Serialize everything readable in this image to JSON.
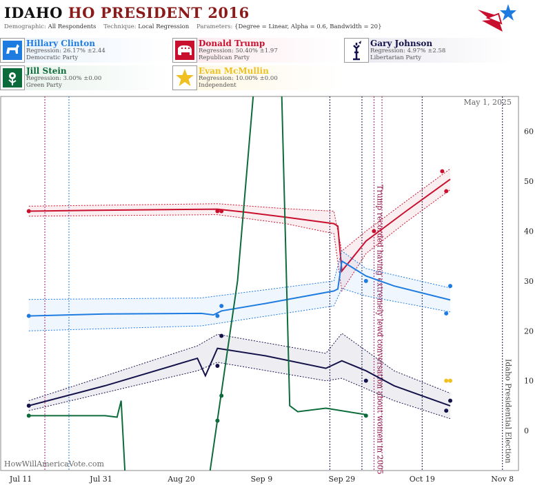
{
  "header": {
    "state": "IDAHO",
    "title_rest": "HO PRESIDENT 2016",
    "demographic_label": "Demographic:",
    "demographic": "All Respondents",
    "technique_label": "Technique:",
    "technique": "Local Regression",
    "parameters_label": "Parameters:",
    "parameters": "{Degree = Linear, Alpha = 0.6, Bandwidth = 20}"
  },
  "candidates": [
    {
      "name": "Hillary Clinton",
      "regression": "Regression: 26.17% ±2.44",
      "party": "Democratic Party",
      "color": "#1e7be0",
      "icon": "donkey-icon"
    },
    {
      "name": "Donald Trump",
      "regression": "Regression: 50.40% ±1.97",
      "party": "Republican Party",
      "color": "#c8102e",
      "icon": "elephant-icon"
    },
    {
      "name": "Gary Johnson",
      "regression": "Regression: 4.97% ±2.58",
      "party": "Libertarian Party",
      "color": "#14124a",
      "icon": "statue-of-liberty-icon"
    },
    {
      "name": "Jill Stein",
      "regression": "Regression: 3.00% ±0.00",
      "party": "Green Party",
      "color": "#0c6b3a",
      "icon": "flower-icon"
    },
    {
      "name": "Evan McMullin",
      "regression": "Regression: 10.00% ±0.00",
      "party": "Independent",
      "color": "#f0c020",
      "icon": "star-icon"
    }
  ],
  "chart_data": {
    "type": "line",
    "date_label": "May 1, 2025",
    "watermark": "HowWillAmericaVote.com",
    "x_ticks": [
      "Jul 11",
      "Jul 31",
      "Aug 20",
      "Sep 9",
      "Sep 29",
      "Oct 19",
      "Nov 8"
    ],
    "x_range": [
      "2016-07-06",
      "2016-11-12"
    ],
    "y_ticks": [
      0,
      10,
      20,
      30,
      40,
      50,
      60
    ],
    "ylim": [
      -8,
      67
    ],
    "grid": false,
    "annotations": [
      {
        "date": "2016-10-07",
        "text": "Trump recorded having extremely lewd conversation about women in 2005",
        "color": "#8b1040"
      },
      {
        "date": "2016-11-08",
        "text": "Idaho Presidential Election",
        "color": "#444444"
      }
    ],
    "vertical_lines": [
      {
        "date": "2016-07-17",
        "color": "#a0186a"
      },
      {
        "date": "2016-07-23",
        "color": "#1e7be0"
      },
      {
        "date": "2016-09-26",
        "color": "#14124a"
      },
      {
        "date": "2016-10-04",
        "color": "#14124a"
      },
      {
        "date": "2016-10-07",
        "color": "#a0186a"
      },
      {
        "date": "2016-10-09",
        "color": "#a0186a"
      },
      {
        "date": "2016-10-19",
        "color": "#14124a"
      },
      {
        "date": "2016-11-08",
        "color": "#14124a"
      }
    ],
    "series": [
      {
        "name": "Donald Trump",
        "color": "#c8102e",
        "line": [
          [
            "2016-07-13",
            44
          ],
          [
            "2016-08-01",
            44.2
          ],
          [
            "2016-08-29",
            44.4
          ],
          [
            "2016-09-05",
            43.8
          ],
          [
            "2016-09-15",
            42.8
          ],
          [
            "2016-09-27",
            41.5
          ],
          [
            "2016-09-28",
            41
          ],
          [
            "2016-09-29",
            32
          ],
          [
            "2016-10-05",
            38
          ],
          [
            "2016-10-15",
            44
          ],
          [
            "2016-10-26",
            50.4
          ]
        ],
        "upper": [
          [
            "2016-07-13",
            45
          ],
          [
            "2016-08-29",
            45.5
          ],
          [
            "2016-09-15",
            44.5
          ],
          [
            "2016-09-27",
            44
          ],
          [
            "2016-09-29",
            36
          ],
          [
            "2016-10-05",
            40
          ],
          [
            "2016-10-15",
            46
          ],
          [
            "2016-10-26",
            52.5
          ]
        ],
        "lower": [
          [
            "2016-07-13",
            43
          ],
          [
            "2016-08-29",
            43.3
          ],
          [
            "2016-09-15",
            41.5
          ],
          [
            "2016-09-27",
            39.5
          ],
          [
            "2016-09-29",
            28
          ],
          [
            "2016-10-05",
            35.5
          ],
          [
            "2016-10-15",
            41.8
          ],
          [
            "2016-10-26",
            48.3
          ]
        ],
        "points": [
          [
            "2016-07-13",
            44
          ],
          [
            "2016-08-29",
            44
          ],
          [
            "2016-08-30",
            44
          ],
          [
            "2016-10-07",
            40
          ],
          [
            "2016-10-24",
            52
          ],
          [
            "2016-10-25",
            48
          ]
        ]
      },
      {
        "name": "Hillary Clinton",
        "color": "#1e7be0",
        "line": [
          [
            "2016-07-13",
            23
          ],
          [
            "2016-08-01",
            23.4
          ],
          [
            "2016-08-25",
            23.5
          ],
          [
            "2016-08-28",
            23.2
          ],
          [
            "2016-08-30",
            24
          ],
          [
            "2016-09-10",
            25.5
          ],
          [
            "2016-09-27",
            28
          ],
          [
            "2016-09-28",
            28.4
          ],
          [
            "2016-09-29",
            34
          ],
          [
            "2016-10-05",
            31
          ],
          [
            "2016-10-12",
            29
          ],
          [
            "2016-10-26",
            26.2
          ]
        ],
        "upper": [
          [
            "2016-07-13",
            26.3
          ],
          [
            "2016-08-25",
            26.6
          ],
          [
            "2016-09-27",
            30
          ],
          [
            "2016-09-29",
            36
          ],
          [
            "2016-10-05",
            32.5
          ],
          [
            "2016-10-26",
            28.6
          ]
        ],
        "lower": [
          [
            "2016-07-13",
            20
          ],
          [
            "2016-08-25",
            21
          ],
          [
            "2016-09-27",
            25
          ],
          [
            "2016-09-29",
            28.5
          ],
          [
            "2016-10-05",
            27
          ],
          [
            "2016-10-26",
            23.8
          ]
        ],
        "points": [
          [
            "2016-07-13",
            23
          ],
          [
            "2016-08-29",
            23
          ],
          [
            "2016-08-30",
            25
          ],
          [
            "2016-10-05",
            30
          ],
          [
            "2016-10-25",
            23.5
          ],
          [
            "2016-10-26",
            29
          ]
        ]
      },
      {
        "name": "Gary Johnson",
        "color": "#14124a",
        "line": [
          [
            "2016-07-13",
            5
          ],
          [
            "2016-08-01",
            9
          ],
          [
            "2016-08-24",
            14.5
          ],
          [
            "2016-08-26",
            11
          ],
          [
            "2016-08-29",
            16.5
          ],
          [
            "2016-09-10",
            15
          ],
          [
            "2016-09-25",
            12.5
          ],
          [
            "2016-09-29",
            14
          ],
          [
            "2016-10-05",
            12
          ],
          [
            "2016-10-12",
            9
          ],
          [
            "2016-10-26",
            4.97
          ]
        ],
        "upper": [
          [
            "2016-07-13",
            6
          ],
          [
            "2016-08-24",
            17
          ],
          [
            "2016-08-29",
            19.3
          ],
          [
            "2016-09-25",
            15.5
          ],
          [
            "2016-09-29",
            19.5
          ],
          [
            "2016-10-12",
            12
          ],
          [
            "2016-10-26",
            7.5
          ]
        ],
        "lower": [
          [
            "2016-07-13",
            4
          ],
          [
            "2016-08-24",
            12
          ],
          [
            "2016-08-29",
            13.7
          ],
          [
            "2016-09-25",
            10
          ],
          [
            "2016-09-29",
            10.5
          ],
          [
            "2016-10-12",
            6
          ],
          [
            "2016-10-26",
            2.4
          ]
        ],
        "points": [
          [
            "2016-07-13",
            5
          ],
          [
            "2016-08-29",
            13
          ],
          [
            "2016-08-30",
            19
          ],
          [
            "2016-10-05",
            10
          ],
          [
            "2016-10-25",
            4
          ],
          [
            "2016-10-26",
            6
          ]
        ]
      },
      {
        "name": "Jill Stein",
        "color": "#0c6b3a",
        "line": [
          [
            "2016-07-13",
            3
          ],
          [
            "2016-08-01",
            3
          ],
          [
            "2016-08-04",
            2.7
          ],
          [
            "2016-08-05",
            6
          ],
          [
            "2016-08-06",
            -9
          ]
        ],
        "line2": [
          [
            "2016-08-27",
            -9
          ],
          [
            "2016-09-03",
            30
          ],
          [
            "2016-09-07",
            68
          ]
        ],
        "line3": [
          [
            "2016-09-14",
            68
          ],
          [
            "2016-09-16",
            5
          ],
          [
            "2016-09-18",
            3.8
          ],
          [
            "2016-09-25",
            4.5
          ],
          [
            "2016-10-05",
            3.2
          ]
        ],
        "points": [
          [
            "2016-07-13",
            3
          ],
          [
            "2016-08-29",
            2
          ],
          [
            "2016-08-30",
            7
          ],
          [
            "2016-10-05",
            3
          ]
        ]
      },
      {
        "name": "Evan McMullin",
        "color": "#f0c020",
        "line": [],
        "points": [
          [
            "2016-10-25",
            10
          ],
          [
            "2016-10-26",
            10
          ]
        ]
      }
    ]
  }
}
